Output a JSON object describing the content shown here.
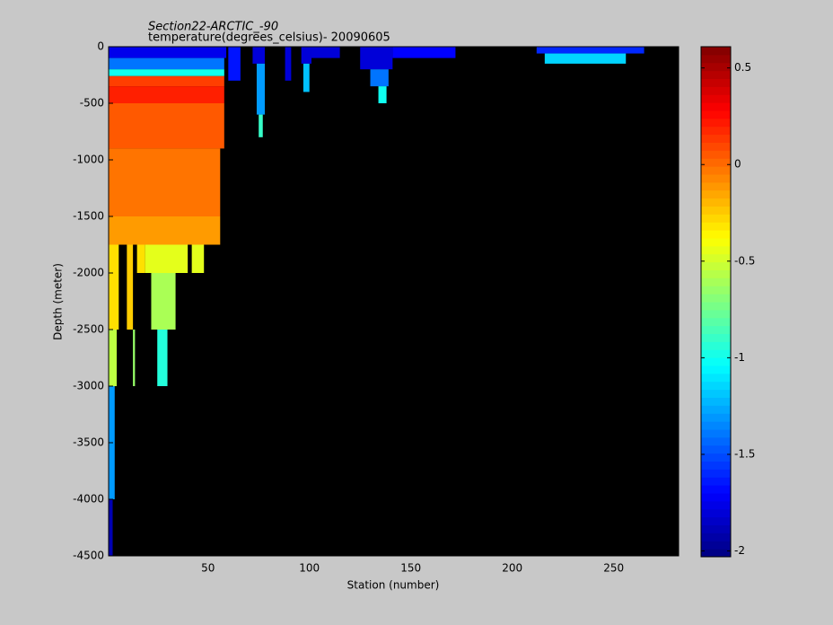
{
  "chart_data": {
    "type": "heatmap",
    "title": "Section22-ARCTIC_-90",
    "subtitle": "temperature(degrees_celsius)- 20090605",
    "x_label": "Station (number)",
    "y_label": "Depth (meter)",
    "xlim": [
      1,
      282
    ],
    "ylim": [
      -4500,
      0
    ],
    "xticks": [
      50,
      100,
      150,
      200,
      250
    ],
    "yticks": [
      0,
      -500,
      -1000,
      -1500,
      -2000,
      -2500,
      -3000,
      -3500,
      -4000,
      -4500
    ],
    "colormap": "jet",
    "background_color": "#000000",
    "clim": [
      -2.03,
      0.61
    ],
    "cticks": [
      0.5,
      0,
      -0.5,
      -1,
      -1.5,
      -2
    ],
    "cells": [
      {
        "x": [
          1,
          59
        ],
        "depth": [
          0,
          -100
        ],
        "value": -1.75
      },
      {
        "x": [
          1,
          58
        ],
        "depth": [
          -100,
          -200
        ],
        "value": -1.4
      },
      {
        "x": [
          1,
          58
        ],
        "depth": [
          -200,
          -260
        ],
        "value": -1.0
      },
      {
        "x": [
          1,
          58
        ],
        "depth": [
          -260,
          -350
        ],
        "value": 0.12
      },
      {
        "x": [
          1,
          58
        ],
        "depth": [
          -350,
          -500
        ],
        "value": 0.2
      },
      {
        "x": [
          1,
          58
        ],
        "depth": [
          -500,
          -900
        ],
        "value": 0.05
      },
      {
        "x": [
          1,
          56
        ],
        "depth": [
          -900,
          -1500
        ],
        "value": -0.02
      },
      {
        "x": [
          1,
          56
        ],
        "depth": [
          -1500,
          -1750
        ],
        "value": -0.12
      },
      {
        "x": [
          1,
          6
        ],
        "depth": [
          -1750,
          -2500
        ],
        "value": -0.3
      },
      {
        "x": [
          10,
          13
        ],
        "depth": [
          -1750,
          -2500
        ],
        "value": -0.25
      },
      {
        "x": [
          15,
          19
        ],
        "depth": [
          -1750,
          -2000
        ],
        "value": -0.3
      },
      {
        "x": [
          19,
          40
        ],
        "depth": [
          -1750,
          -2000
        ],
        "value": -0.45
      },
      {
        "x": [
          42,
          48
        ],
        "depth": [
          -1750,
          -2000
        ],
        "value": -0.45
      },
      {
        "x": [
          22,
          34
        ],
        "depth": [
          -2000,
          -2500
        ],
        "value": -0.6
      },
      {
        "x": [
          1,
          5
        ],
        "depth": [
          -2500,
          -3000
        ],
        "value": -0.55
      },
      {
        "x": [
          13,
          14
        ],
        "depth": [
          -2500,
          -3000
        ],
        "value": -0.65
      },
      {
        "x": [
          25,
          30
        ],
        "depth": [
          -2500,
          -3000
        ],
        "value": -0.95
      },
      {
        "x": [
          1,
          4
        ],
        "depth": [
          -3000,
          -4000
        ],
        "value": -1.3
      },
      {
        "x": [
          1,
          3
        ],
        "depth": [
          -4000,
          -4500
        ],
        "value": -1.9
      },
      {
        "x": [
          60,
          66
        ],
        "depth": [
          0,
          -300
        ],
        "value": -1.65
      },
      {
        "x": [
          72,
          78
        ],
        "depth": [
          0,
          -150
        ],
        "value": -1.8
      },
      {
        "x": [
          74,
          78
        ],
        "depth": [
          -150,
          -600
        ],
        "value": -1.3
      },
      {
        "x": [
          75,
          77
        ],
        "depth": [
          -600,
          -800
        ],
        "value": -0.9
      },
      {
        "x": [
          88,
          91
        ],
        "depth": [
          0,
          -300
        ],
        "value": -1.8
      },
      {
        "x": [
          96,
          101
        ],
        "depth": [
          0,
          -150
        ],
        "value": -1.8
      },
      {
        "x": [
          97,
          100
        ],
        "depth": [
          -150,
          -400
        ],
        "value": -1.2
      },
      {
        "x": [
          101,
          115
        ],
        "depth": [
          0,
          -100
        ],
        "value": -1.8
      },
      {
        "x": [
          125,
          141
        ],
        "depth": [
          0,
          -200
        ],
        "value": -1.8
      },
      {
        "x": [
          130,
          139
        ],
        "depth": [
          -200,
          -350
        ],
        "value": -1.4
      },
      {
        "x": [
          134,
          138
        ],
        "depth": [
          -350,
          -500
        ],
        "value": -1.0
      },
      {
        "x": [
          141,
          172
        ],
        "depth": [
          0,
          -100
        ],
        "value": -1.7
      },
      {
        "x": [
          212,
          265
        ],
        "depth": [
          0,
          -60
        ],
        "value": -1.6
      },
      {
        "x": [
          216,
          256
        ],
        "depth": [
          -60,
          -150
        ],
        "value": -1.15
      }
    ]
  }
}
